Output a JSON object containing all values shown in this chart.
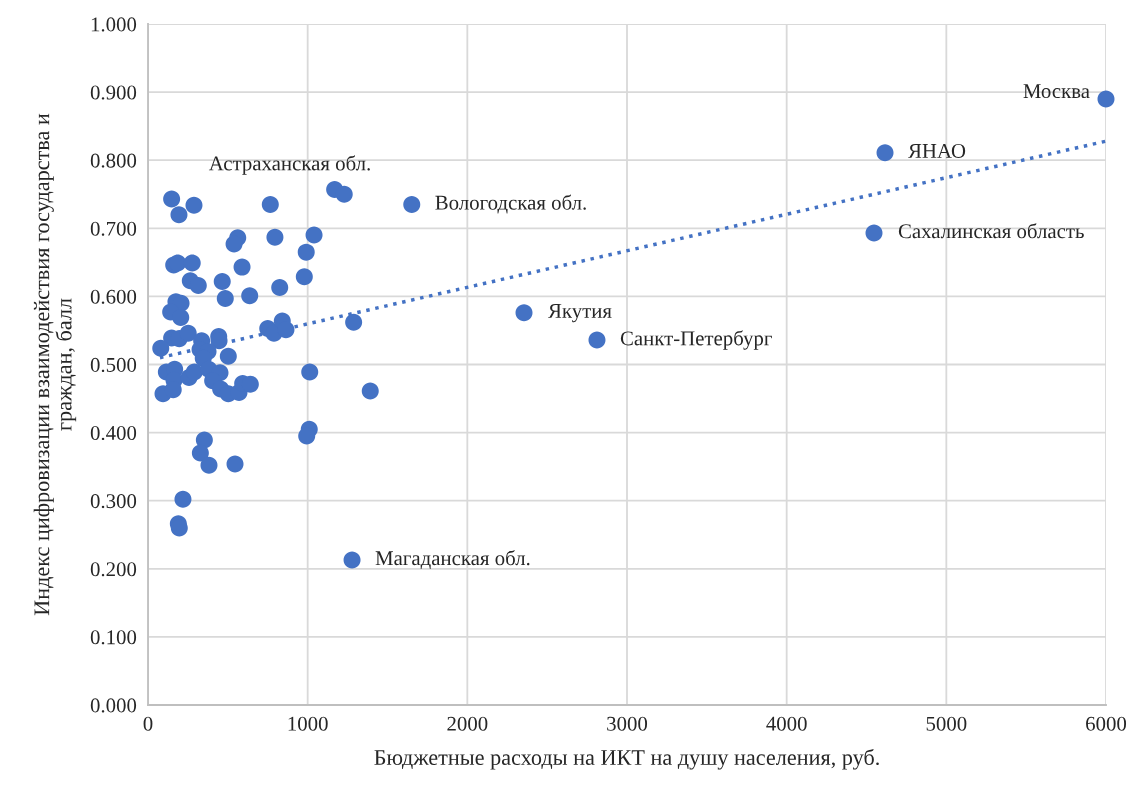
{
  "chart_data": {
    "type": "scatter",
    "xlabel": "Бюджетные расходы на ИКТ на душу населения, руб.",
    "ylabel": "Индекс цифровизации взаимодействия государства и\nграждан, балл",
    "xlim": [
      0,
      6000
    ],
    "xticks": [
      0,
      1000,
      2000,
      3000,
      4000,
      5000,
      6000
    ],
    "ylim": [
      0,
      1
    ],
    "yticks": [
      {
        "value": 0,
        "label": "0.000"
      },
      {
        "value": 0.1,
        "label": "0.100"
      },
      {
        "value": 0.2,
        "label": "0.200"
      },
      {
        "value": 0.3,
        "label": "0.300"
      },
      {
        "value": 0.4,
        "label": "0.400"
      },
      {
        "value": 0.5,
        "label": "0.500"
      },
      {
        "value": 0.6,
        "label": "0.600"
      },
      {
        "value": 0.7,
        "label": "0.700"
      },
      {
        "value": 0.8,
        "label": "0.800"
      },
      {
        "value": 0.9,
        "label": "0.900"
      },
      {
        "value": 1,
        "label": "1.000"
      }
    ],
    "grid": true,
    "legend": false,
    "series": [
      {
        "color": "#4472c4",
        "marker": "circle",
        "x": [
          148,
          194,
          288,
          766,
          1169,
          1229,
          562,
          539,
          795,
          1040,
          991,
          161,
          186,
          277,
          589,
          265,
          315,
          465,
          979,
          825,
          484,
          637,
          175,
          207,
          142,
          205,
          148,
          196,
          252,
          80,
          336,
          443,
          445,
          326,
          376,
          346,
          503,
          750,
          789,
          841,
          864,
          1288,
          115,
          167,
          163,
          257,
          290,
          380,
          451,
          405,
          455,
          94,
          158,
          503,
          570,
          593,
          641,
          1013,
          1392,
          1010,
          994,
          353,
          328,
          382,
          545,
          219,
          190,
          196,
          1278,
          1652,
          2355,
          2812,
          4616,
          4547,
          6000
        ],
        "values": [
          0.743,
          0.72,
          0.734,
          0.735,
          0.757,
          0.75,
          0.686,
          0.677,
          0.687,
          0.69,
          0.665,
          0.646,
          0.649,
          0.649,
          0.643,
          0.623,
          0.616,
          0.622,
          0.629,
          0.613,
          0.597,
          0.601,
          0.592,
          0.59,
          0.577,
          0.569,
          0.539,
          0.538,
          0.546,
          0.524,
          0.535,
          0.541,
          0.535,
          0.522,
          0.519,
          0.509,
          0.512,
          0.553,
          0.546,
          0.564,
          0.551,
          0.562,
          0.489,
          0.493,
          0.477,
          0.481,
          0.489,
          0.493,
          0.488,
          0.476,
          0.464,
          0.457,
          0.463,
          0.457,
          0.459,
          0.472,
          0.471,
          0.489,
          0.461,
          0.405,
          0.395,
          0.389,
          0.37,
          0.352,
          0.354,
          0.302,
          0.266,
          0.26,
          0.213,
          0.735,
          0.576,
          0.536,
          0.811,
          0.693,
          0.89
        ]
      },
      {
        "type": "line",
        "color": "#4472c4",
        "line_style": "dotted",
        "marker": "none",
        "x": [
          75,
          6000
        ],
        "values": [
          0.51,
          0.828
        ]
      }
    ],
    "annotations": [
      "Астраханская обл.",
      {
        "text": "Вологодская обл.",
        "x": 1652,
        "y": 0.735
      },
      {
        "text": "Якутия",
        "x": 2355,
        "y": 0.576
      },
      {
        "text": "Санкт-Петербург",
        "x": 2812,
        "y": 0.536
      },
      {
        "text": "ЯНАО",
        "x": 4616,
        "y": 0.811
      },
      {
        "text": "Сахалинская область",
        "x": 4547,
        "y": 0.693
      },
      {
        "text": "Москва",
        "x": 6000,
        "y": 0.89
      },
      {
        "text": "Магаданская обл.",
        "x": 1278,
        "y": 0.213
      }
    ]
  }
}
